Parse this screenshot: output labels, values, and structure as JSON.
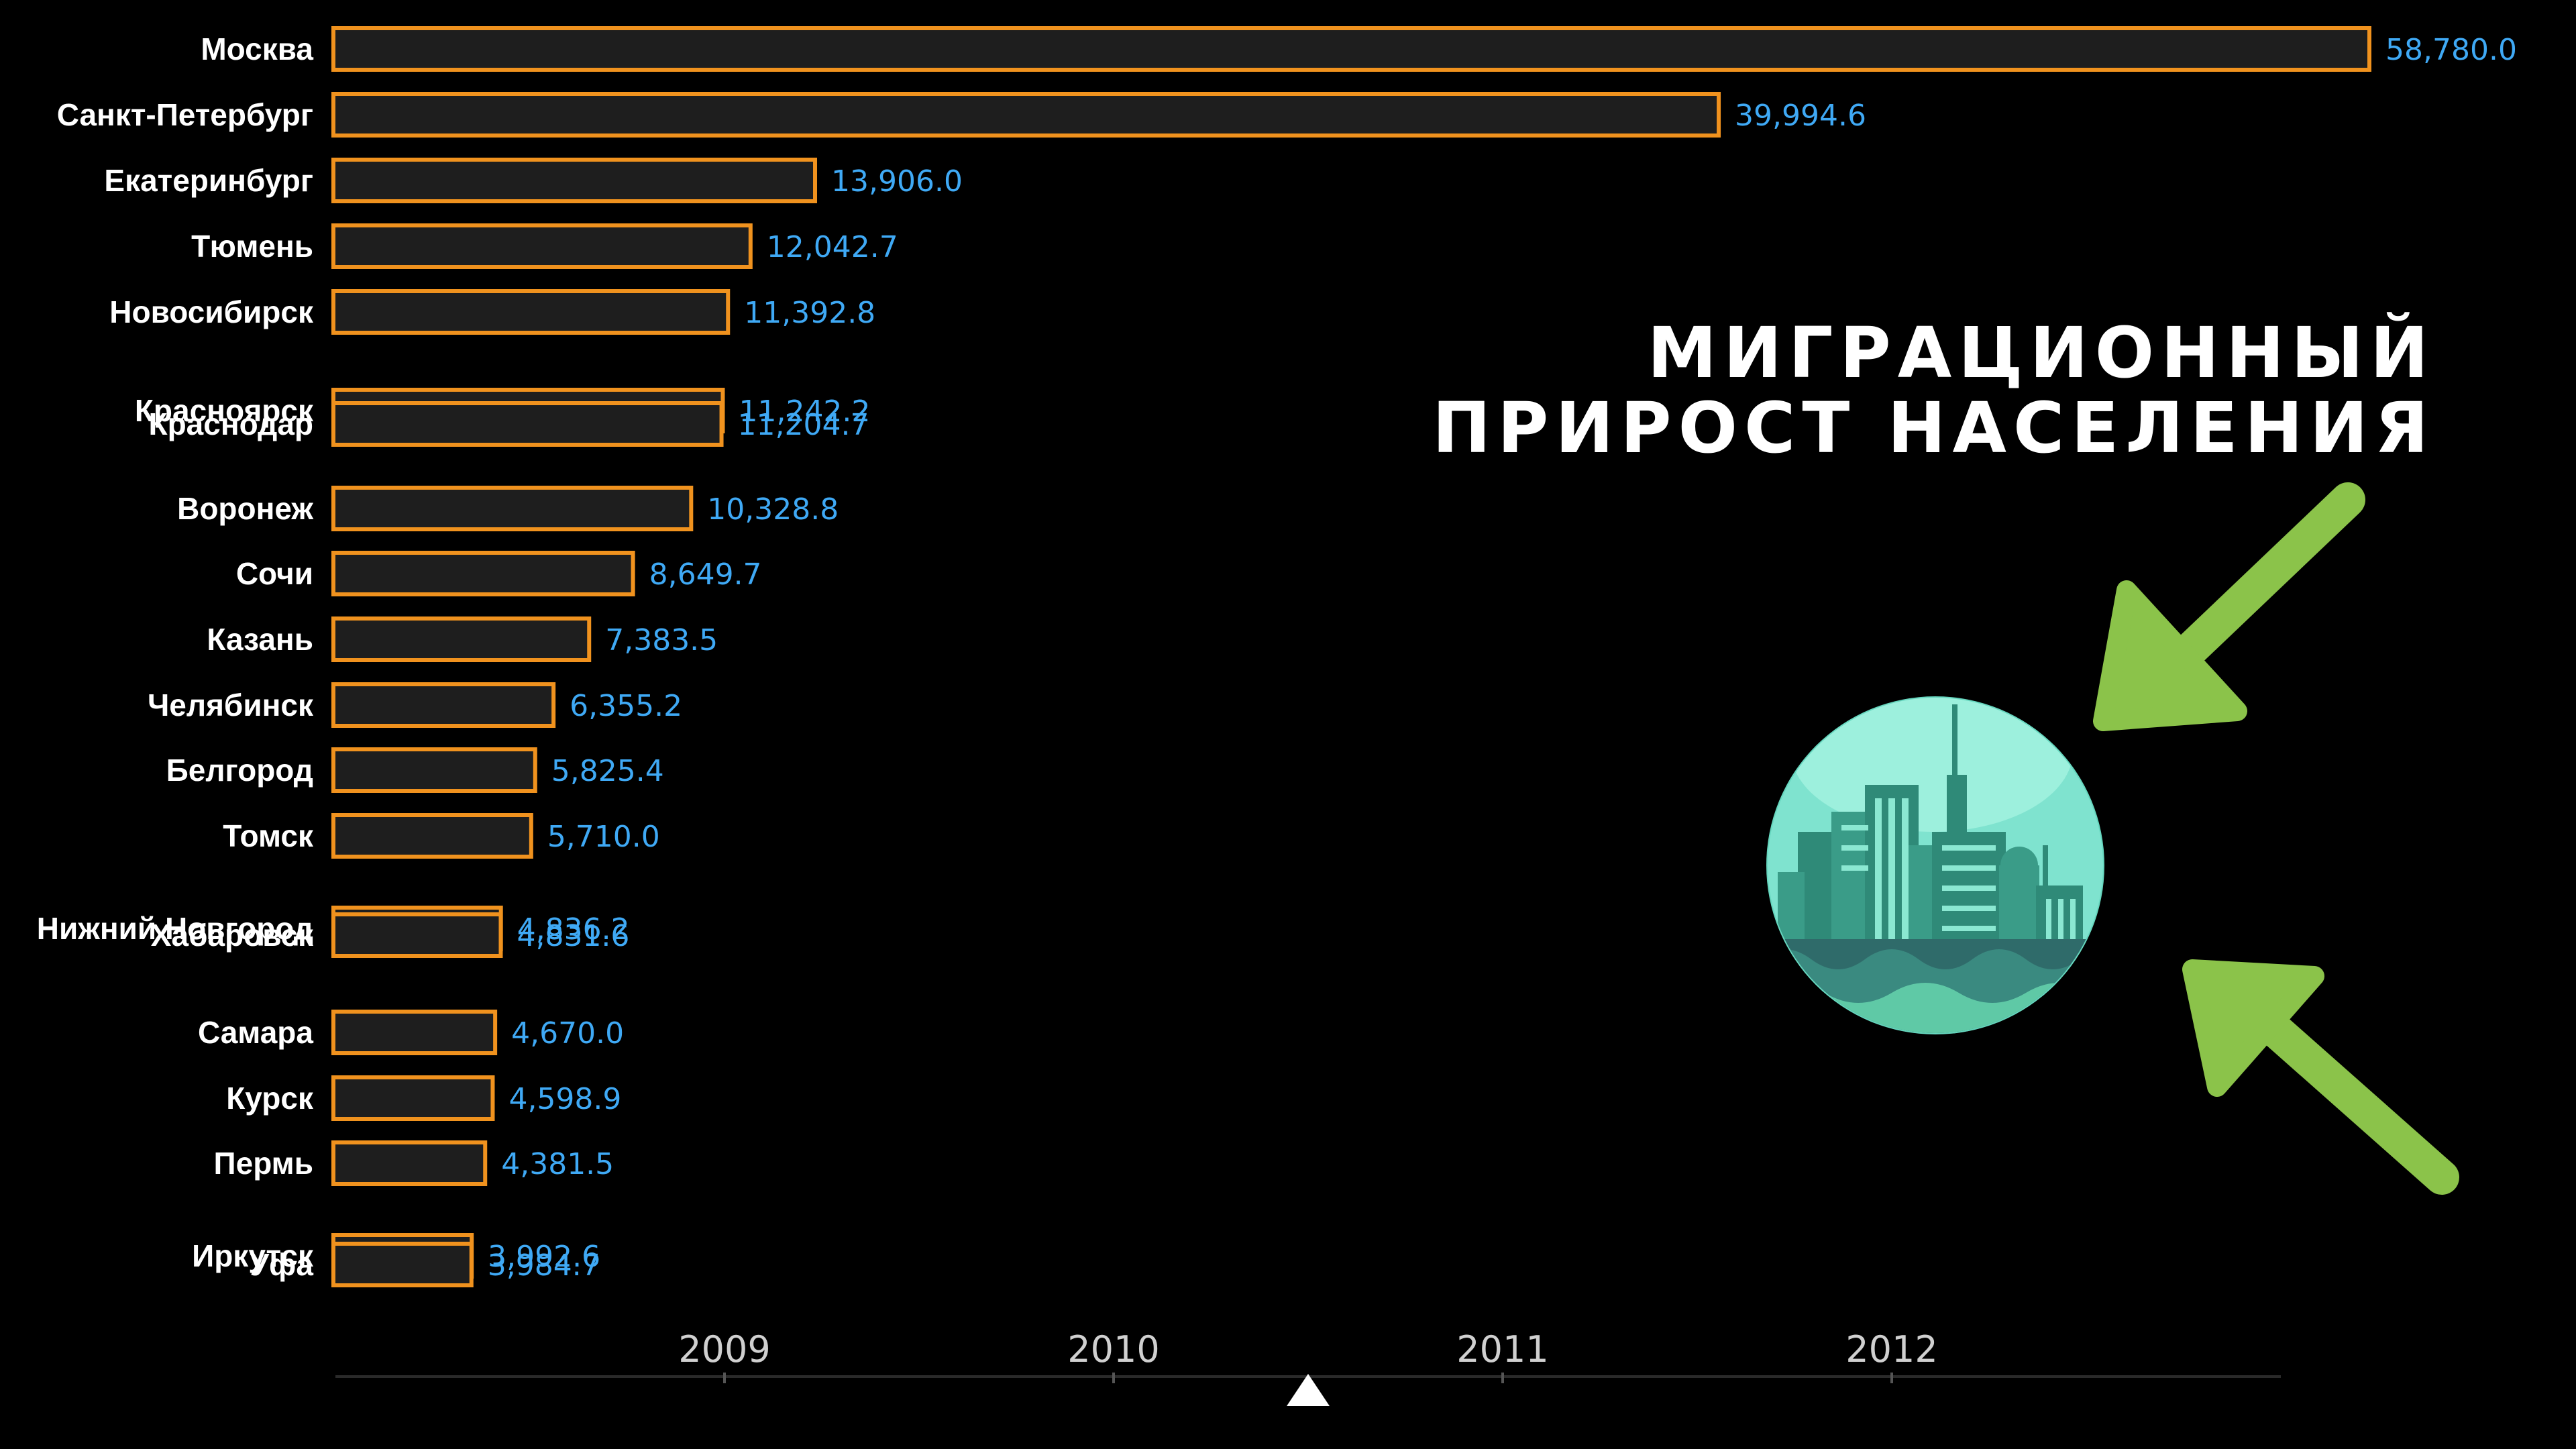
{
  "headline": {
    "line1": "МИГРАЦИОННЫЙ",
    "line2": "ПРИРОСТ НАСЕЛЕНИЯ"
  },
  "colors": {
    "background": "#000000",
    "bar_fill": "#1e1e1e",
    "bar_stroke": "#f0921e",
    "value_text": "#3fa9f5",
    "label_text": "#ffffff",
    "arrow": "#8bc34a",
    "globe": "#5fd3b8"
  },
  "icons": [
    "city-globe-icon",
    "arrow-in-top-icon",
    "arrow-in-bottom-icon",
    "timeline-marker-icon"
  ],
  "chart_data": {
    "type": "bar",
    "orientation": "horizontal",
    "title": "",
    "xlabel": "",
    "ylabel": "",
    "xlim": [
      0,
      58780
    ],
    "grid": false,
    "legend": "none",
    "categories": [
      "Москва",
      "Санкт-Петербург",
      "Екатеринбург",
      "Тюмень",
      "Новосибирск",
      "Красноярск",
      "Краснодар",
      "Воронеж",
      "Сочи",
      "Казань",
      "Челябинск",
      "Белгород",
      "Томск",
      "Нижний Новгород",
      "Хабаровск",
      "Самара",
      "Курск",
      "Пермь",
      "Иркутск",
      "Уфа"
    ],
    "values": [
      58780.0,
      39994.6,
      13906.0,
      12042.7,
      11392.8,
      11242.2,
      11204.7,
      10328.8,
      8649.7,
      7383.5,
      6355.2,
      5825.4,
      5710.0,
      4836.2,
      4831.6,
      4670.0,
      4598.9,
      4381.5,
      3992.6,
      3984.7
    ],
    "value_labels": [
      "58,780.0",
      "39,994.6",
      "13,906.0",
      "12,042.7",
      "11,392.8",
      "11,242.2",
      "11,204.7",
      "10,328.8",
      "8,649.7",
      "7,383.5",
      "6,355.2",
      "5,825.4",
      "5,710.0",
      "4,836.2",
      "4,831.6",
      "4,670.0",
      "4,598.9",
      "4,381.5",
      "3,992.6",
      "3,984.7"
    ],
    "timeline": {
      "years": [
        "2009",
        "2010",
        "2011",
        "2012"
      ],
      "current_position_years": 2010.5,
      "range": [
        2008.0,
        2013.0
      ]
    }
  }
}
